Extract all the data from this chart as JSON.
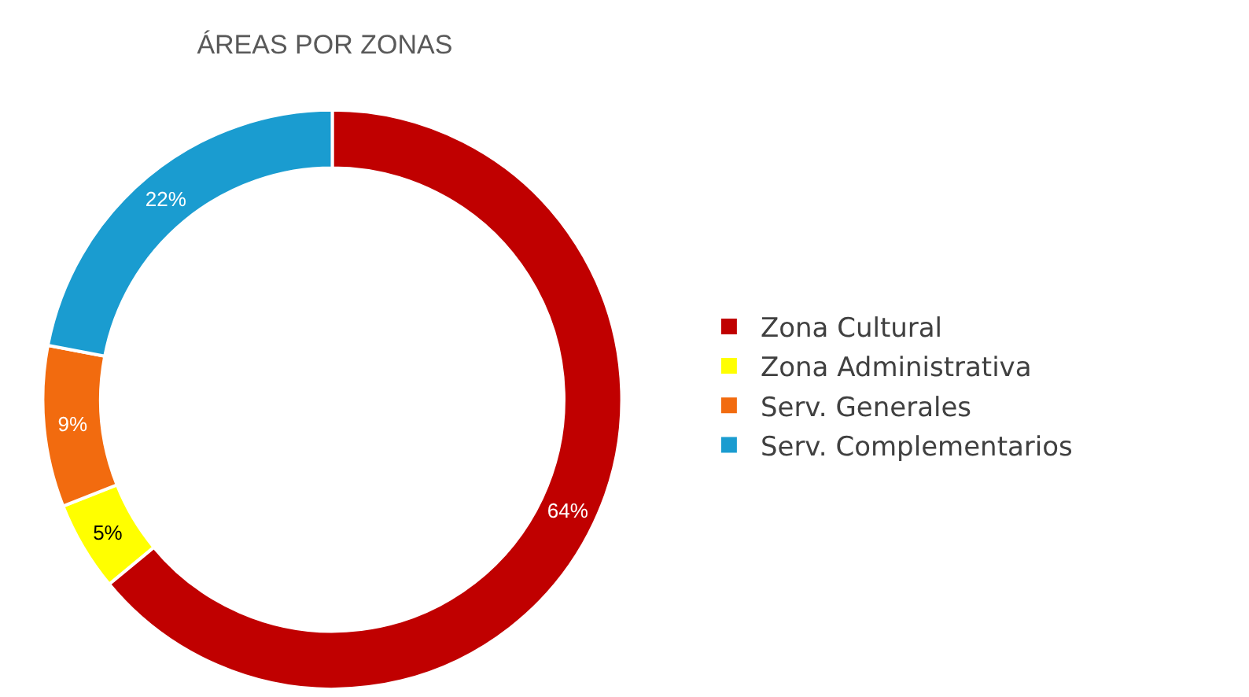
{
  "chart_data": {
    "type": "donut",
    "title": "ÁREAS POR ZONAS",
    "categories": [
      "Zona Cultural",
      "Zona Administrativa",
      "Serv. Generales",
      "Serv. Complementarios"
    ],
    "values": [
      64,
      5,
      9,
      22
    ],
    "value_labels": [
      "64%",
      "5%",
      "9%",
      "22%"
    ],
    "colors": [
      "#c00000",
      "#ffff00",
      "#f26b0f",
      "#1a9cd0"
    ],
    "legend": "right"
  }
}
